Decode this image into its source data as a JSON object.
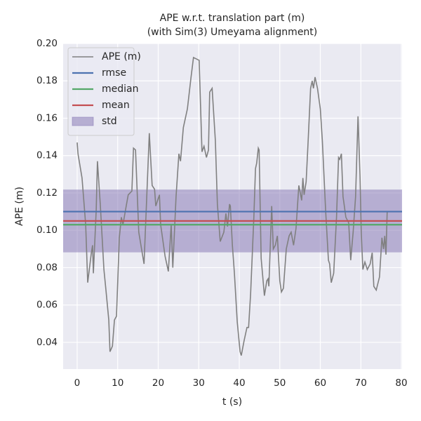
{
  "chart_data": {
    "type": "line",
    "title": "APE w.r.t. translation part (m)",
    "subtitle": "(with Sim(3) Umeyama alignment)",
    "xlabel": "t (s)",
    "ylabel": "APE (m)",
    "xlim": [
      -3.46,
      80.17
    ],
    "ylim": [
      0.0257,
      0.2
    ],
    "xticks": [
      0,
      10,
      20,
      30,
      40,
      50,
      60,
      70,
      80
    ],
    "yticks": [
      0.04,
      0.06,
      0.08,
      {
        "value": 0.1,
        "label": "0.10"
      },
      0.12,
      0.14,
      0.16,
      0.18,
      {
        "value": 0.2,
        "label": "0.20"
      }
    ],
    "grid": true,
    "legend": "upper left",
    "series": [
      {
        "name": "APE (m)",
        "color": "#808080",
        "x": [
          0,
          0.2,
          1.2,
          2.1,
          2.6,
          3.5,
          3.8,
          4.0,
          4.7,
          5.0,
          5.7,
          6.6,
          7.1,
          7.8,
          8.1,
          8.7,
          9.2,
          9.7,
          10.4,
          10.9,
          11.3,
          12.1,
          12.6,
          13.5,
          13.9,
          14.4,
          15.2,
          16.5,
          17.3,
          17.8,
          18.5,
          19.1,
          19.4,
          20.3,
          20.6,
          21.7,
          22.5,
          23.2,
          23.6,
          24.4,
          25.1,
          25.5,
          26.2,
          27.2,
          28.1,
          28.7,
          30.1,
          30.8,
          31.3,
          31.9,
          32.4,
          32.7,
          33.3,
          34.1,
          34.6,
          35.3,
          36.2,
          36.7,
          37.1,
          37.6,
          37.8,
          38.3,
          38.8,
          39.5,
          40.2,
          40.5,
          41.2,
          41.9,
          42.3,
          42.8,
          43.6,
          44.0,
          44.3,
          44.7,
          44.9,
          45.4,
          46.2,
          46.8,
          47.1,
          47.3,
          48.0,
          48.4,
          48.9,
          49.4,
          50.0,
          50.4,
          50.9,
          51.6,
          52.3,
          52.8,
          53.4,
          54.0,
          54.7,
          55.4,
          55.7,
          56.0,
          56.5,
          57.0,
          57.6,
          58.0,
          58.3,
          58.7,
          59.3,
          60.0,
          60.5,
          61.3,
          62.0,
          62.3,
          62.7,
          63.3,
          64.0,
          64.5,
          64.8,
          65.2,
          65.6,
          65.8,
          66.3,
          67.0,
          67.5,
          68.1,
          68.7,
          69.3,
          69.8,
          70.1,
          70.5,
          71.0,
          71.6,
          72.3,
          72.8,
          73.2,
          73.8,
          74.6,
          75.2,
          75.6,
          75.9,
          76.2,
          76.5
        ],
        "values": [
          0.147,
          0.141,
          0.128,
          0.103,
          0.072,
          0.088,
          0.092,
          0.077,
          0.111,
          0.137,
          0.114,
          0.079,
          0.068,
          0.052,
          0.035,
          0.038,
          0.052,
          0.054,
          0.096,
          0.107,
          0.103,
          0.113,
          0.119,
          0.121,
          0.144,
          0.143,
          0.099,
          0.082,
          0.125,
          0.152,
          0.124,
          0.122,
          0.113,
          0.119,
          0.103,
          0.086,
          0.078,
          0.103,
          0.08,
          0.118,
          0.141,
          0.137,
          0.155,
          0.165,
          0.182,
          0.1925,
          0.191,
          0.142,
          0.145,
          0.139,
          0.143,
          0.174,
          0.176,
          0.148,
          0.114,
          0.094,
          0.099,
          0.109,
          0.102,
          0.114,
          0.113,
          0.092,
          0.077,
          0.051,
          0.035,
          0.033,
          0.041,
          0.048,
          0.048,
          0.066,
          0.107,
          0.133,
          0.136,
          0.144,
          0.143,
          0.085,
          0.065,
          0.073,
          0.074,
          0.07,
          0.113,
          0.09,
          0.092,
          0.097,
          0.073,
          0.067,
          0.069,
          0.09,
          0.097,
          0.099,
          0.092,
          0.101,
          0.124,
          0.116,
          0.128,
          0.119,
          0.126,
          0.148,
          0.176,
          0.18,
          0.176,
          0.182,
          0.176,
          0.165,
          0.148,
          0.111,
          0.084,
          0.082,
          0.072,
          0.077,
          0.107,
          0.139,
          0.138,
          0.141,
          0.118,
          0.115,
          0.107,
          0.104,
          0.084,
          0.099,
          0.118,
          0.161,
          0.129,
          0.099,
          0.079,
          0.083,
          0.079,
          0.082,
          0.088,
          0.07,
          0.068,
          0.075,
          0.096,
          0.09,
          0.097,
          0.087,
          0.11
        ]
      }
    ],
    "stats": [
      {
        "name": "rmse",
        "value": 0.11,
        "color": "#4c72b0"
      },
      {
        "name": "median",
        "value": 0.103,
        "color": "#55a868"
      },
      {
        "name": "mean",
        "value": 0.105,
        "color": "#c44e52"
      }
    ],
    "band": {
      "name": "std",
      "lower": 0.0882,
      "upper": 0.1218,
      "color": "#8172b2"
    }
  }
}
